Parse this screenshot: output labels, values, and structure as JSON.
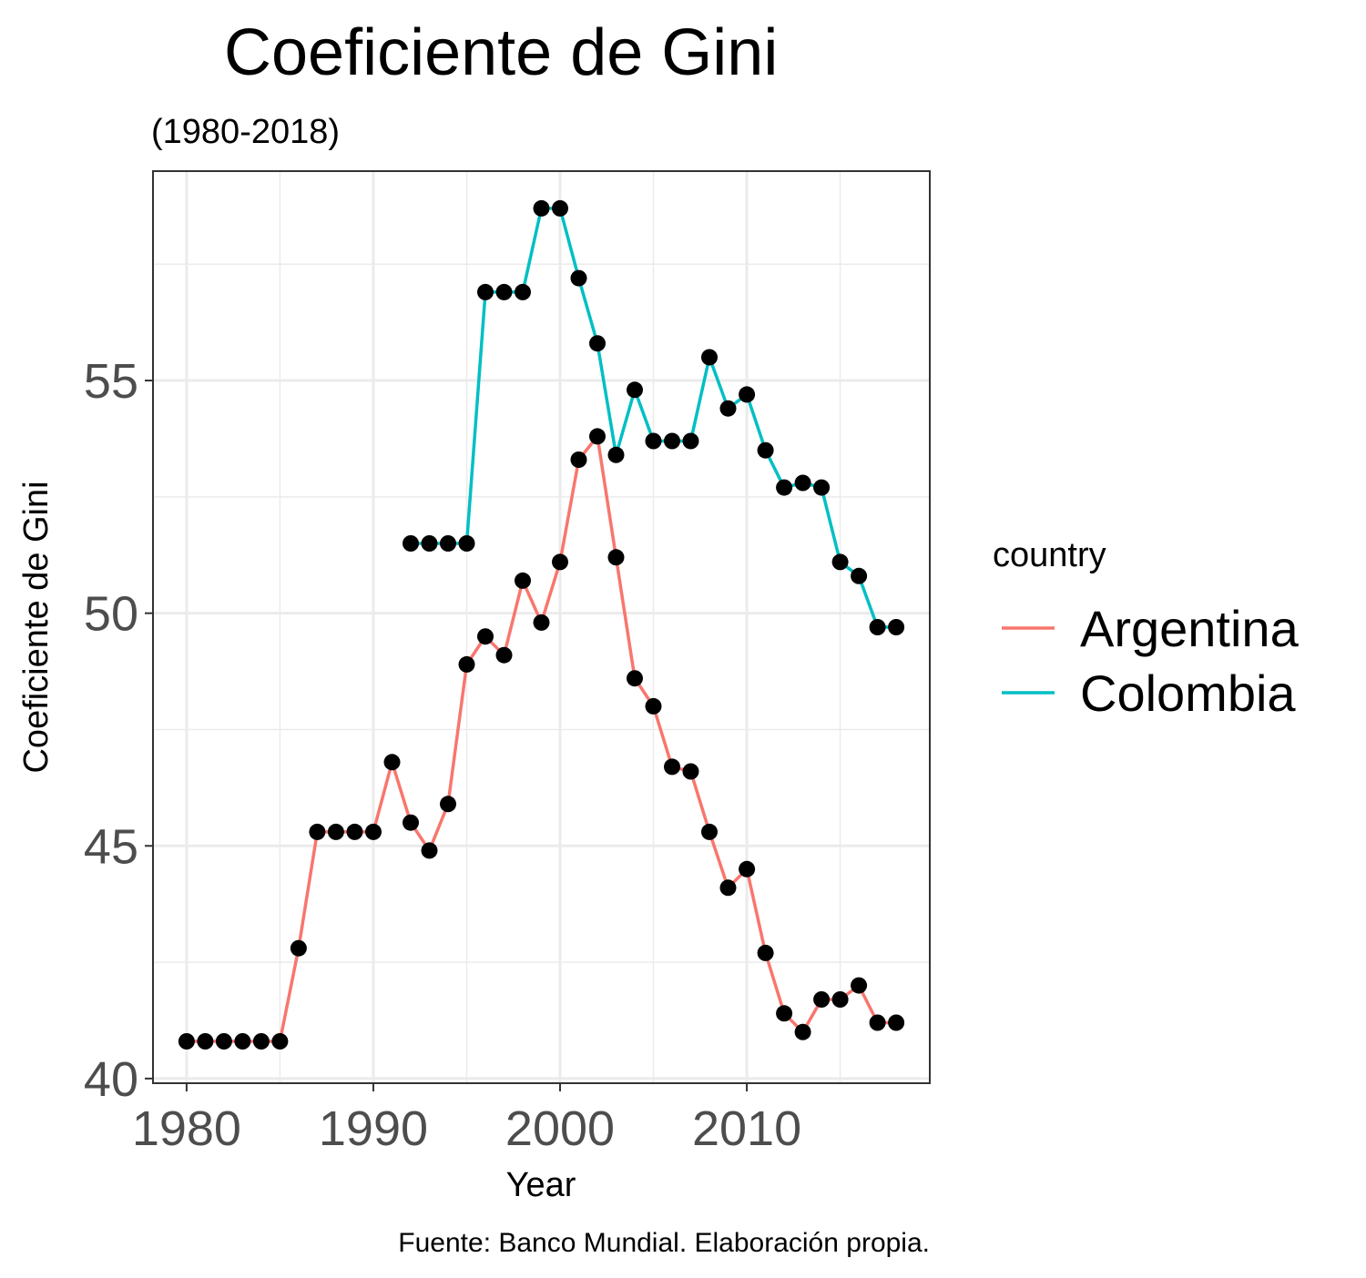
{
  "chart_data": {
    "type": "line",
    "title": "Coeficiente de Gini",
    "subtitle": "(1980-2018)",
    "xlabel": "Year",
    "ylabel": "Coeficiente de Gini",
    "caption": "Fuente: Banco Mundial. Elaboración propia.",
    "xlim": [
      1978.2,
      2019.8
    ],
    "ylim": [
      39.9,
      59.5
    ],
    "x_ticks": [
      1980,
      1990,
      2000,
      2010
    ],
    "y_ticks": [
      40,
      45,
      50,
      55
    ],
    "grid": true,
    "legend": {
      "title": "country",
      "position": "right"
    },
    "series": [
      {
        "name": "Argentina",
        "color": "#F8766D",
        "points": [
          [
            1980,
            40.8
          ],
          [
            1981,
            40.8
          ],
          [
            1982,
            40.8
          ],
          [
            1983,
            40.8
          ],
          [
            1984,
            40.8
          ],
          [
            1985,
            40.8
          ],
          [
            1986,
            42.8
          ],
          [
            1987,
            45.3
          ],
          [
            1988,
            45.3
          ],
          [
            1989,
            45.3
          ],
          [
            1990,
            45.3
          ],
          [
            1991,
            46.8
          ],
          [
            1992,
            45.5
          ],
          [
            1993,
            44.9
          ],
          [
            1994,
            45.9
          ],
          [
            1995,
            48.9
          ],
          [
            1996,
            49.5
          ],
          [
            1997,
            49.1
          ],
          [
            1998,
            50.7
          ],
          [
            1999,
            49.8
          ],
          [
            2000,
            51.1
          ],
          [
            2001,
            53.3
          ],
          [
            2002,
            53.8
          ],
          [
            2003,
            51.2
          ],
          [
            2004,
            48.6
          ],
          [
            2005,
            48.0
          ],
          [
            2006,
            46.7
          ],
          [
            2007,
            46.6
          ],
          [
            2008,
            45.3
          ],
          [
            2009,
            44.1
          ],
          [
            2010,
            44.5
          ],
          [
            2011,
            42.7
          ],
          [
            2012,
            41.4
          ],
          [
            2013,
            41.0
          ],
          [
            2014,
            41.7
          ],
          [
            2015,
            41.7
          ],
          [
            2016,
            42.0
          ],
          [
            2017,
            41.2
          ],
          [
            2018,
            41.2
          ]
        ]
      },
      {
        "name": "Colombia",
        "color": "#00BFC4",
        "points": [
          [
            1992,
            51.5
          ],
          [
            1993,
            51.5
          ],
          [
            1994,
            51.5
          ],
          [
            1995,
            51.5
          ],
          [
            1996,
            56.9
          ],
          [
            1997,
            56.9
          ],
          [
            1998,
            56.9
          ],
          [
            1999,
            58.7
          ],
          [
            2000,
            58.7
          ],
          [
            2001,
            57.2
          ],
          [
            2002,
            55.8
          ],
          [
            2003,
            53.4
          ],
          [
            2004,
            54.8
          ],
          [
            2005,
            53.7
          ],
          [
            2006,
            53.7
          ],
          [
            2007,
            53.7
          ],
          [
            2008,
            55.5
          ],
          [
            2009,
            54.4
          ],
          [
            2010,
            54.7
          ],
          [
            2011,
            53.5
          ],
          [
            2012,
            52.7
          ],
          [
            2013,
            52.8
          ],
          [
            2014,
            52.7
          ],
          [
            2015,
            51.1
          ],
          [
            2016,
            50.8
          ],
          [
            2017,
            49.7
          ],
          [
            2018,
            49.7
          ]
        ]
      }
    ]
  }
}
